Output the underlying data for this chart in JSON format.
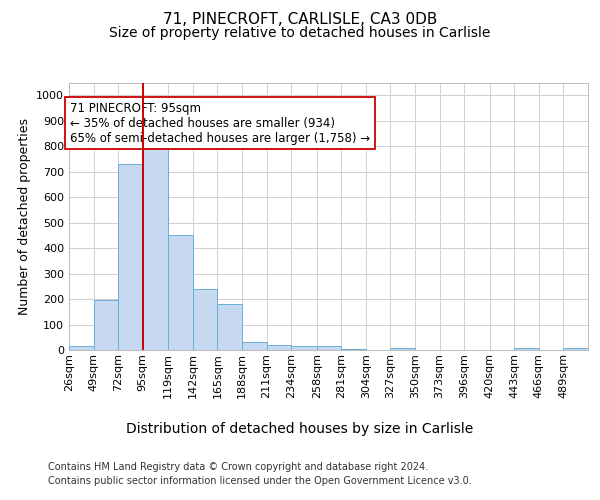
{
  "title1": "71, PINECROFT, CARLISLE, CA3 0DB",
  "title2": "Size of property relative to detached houses in Carlisle",
  "xlabel": "Distribution of detached houses by size in Carlisle",
  "ylabel": "Number of detached properties",
  "bin_labels": [
    "26sqm",
    "49sqm",
    "72sqm",
    "95sqm",
    "119sqm",
    "142sqm",
    "165sqm",
    "188sqm",
    "211sqm",
    "234sqm",
    "258sqm",
    "281sqm",
    "304sqm",
    "327sqm",
    "350sqm",
    "373sqm",
    "396sqm",
    "420sqm",
    "443sqm",
    "466sqm",
    "489sqm"
  ],
  "bar_heights": [
    15,
    195,
    730,
    840,
    450,
    240,
    180,
    30,
    20,
    15,
    15,
    5,
    0,
    8,
    0,
    0,
    0,
    0,
    8,
    0,
    8
  ],
  "bin_edges": [
    26,
    49,
    72,
    95,
    119,
    142,
    165,
    188,
    211,
    234,
    258,
    281,
    304,
    327,
    350,
    373,
    396,
    420,
    443,
    466,
    489,
    512
  ],
  "bar_color": "#c6d9f0",
  "bar_edgecolor": "#6baed6",
  "red_line_x": 95,
  "ylim": [
    0,
    1050
  ],
  "yticks": [
    0,
    100,
    200,
    300,
    400,
    500,
    600,
    700,
    800,
    900,
    1000
  ],
  "annotation_text": "71 PINECROFT: 95sqm\n← 35% of detached houses are smaller (934)\n65% of semi-detached houses are larger (1,758) →",
  "annotation_box_color": "#ffffff",
  "annotation_box_edgecolor": "#cc0000",
  "footnote1": "Contains HM Land Registry data © Crown copyright and database right 2024.",
  "footnote2": "Contains public sector information licensed under the Open Government Licence v3.0.",
  "title1_fontsize": 11,
  "title2_fontsize": 10,
  "xlabel_fontsize": 10,
  "ylabel_fontsize": 9,
  "tick_fontsize": 8,
  "annot_fontsize": 8.5,
  "footnote_fontsize": 7,
  "background_color": "#ffffff",
  "grid_color": "#d0d0d0"
}
